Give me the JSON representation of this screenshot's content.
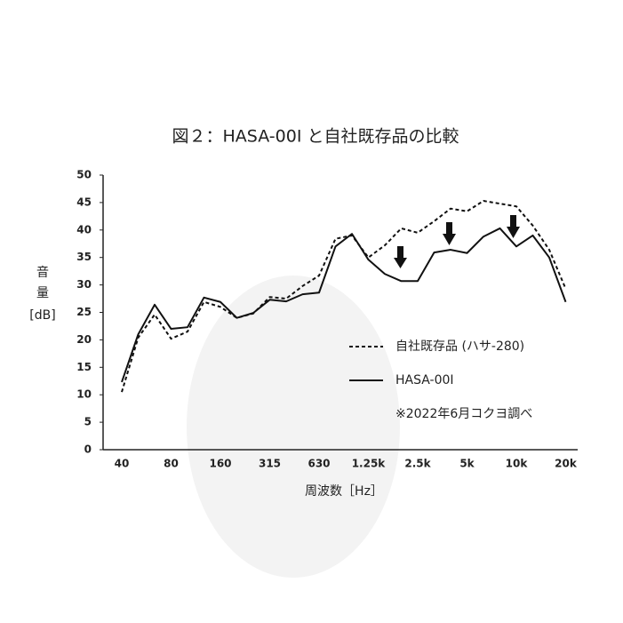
{
  "chart_data": {
    "type": "line",
    "title": "図２：HASA-00I と自社既存品の比較",
    "ylabel": [
      "音",
      "量",
      "[dB]"
    ],
    "xlabel": "周波数［Hz］",
    "note": "※2022年6月コクヨ調べ",
    "categories": [
      "40",
      null,
      null,
      "80",
      null,
      null,
      "160",
      null,
      null,
      "315",
      null,
      null,
      "630",
      null,
      null,
      "1.25k",
      null,
      null,
      "2.5k",
      null,
      null,
      "5k",
      null,
      null,
      "10k",
      null,
      null,
      "20k"
    ],
    "series": [
      {
        "name": "自社既存品 (ハサ-280)",
        "color": "#111111",
        "dash": true,
        "values": [
          10.5,
          20.4,
          24.6,
          20.2,
          21.5,
          26.9,
          26,
          24,
          24.8,
          27.8,
          27.5,
          29.8,
          31.7,
          38.4,
          39,
          35,
          37.2,
          40.3,
          39.5,
          41.6,
          43.9,
          43.4,
          45.3,
          44.8,
          44.3,
          40.8,
          36.4,
          29.3
        ]
      },
      {
        "name": "HASA-00I",
        "color": "#111111",
        "dash": false,
        "values": [
          12.3,
          21,
          26.4,
          22,
          22.3,
          27.7,
          26.9,
          24,
          24.9,
          27.3,
          27,
          28.3,
          28.6,
          37,
          39.3,
          34.6,
          32,
          30.7,
          30.7,
          35.9,
          36.4,
          35.8,
          38.8,
          40.3,
          37,
          39,
          35,
          26.9
        ]
      }
    ],
    "ylim": [
      0,
      50
    ],
    "yticks": [
      0,
      5,
      10,
      15,
      20,
      25,
      30,
      35,
      40,
      45,
      50
    ],
    "grid": false
  }
}
